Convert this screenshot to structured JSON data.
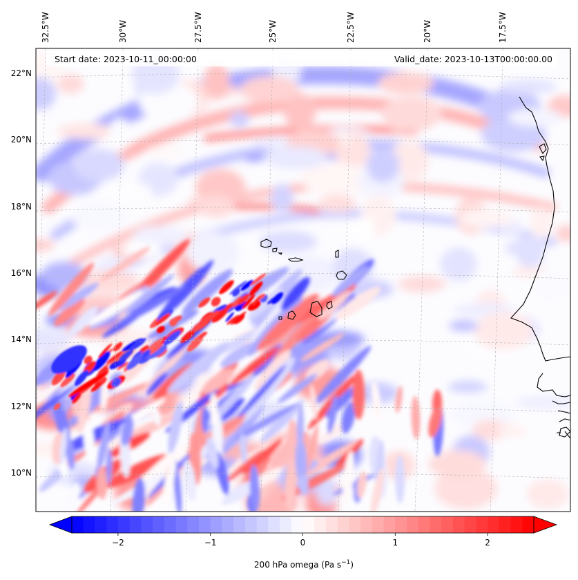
{
  "map": {
    "start_date_text": "Start date: 2023-10-11_00:00:00",
    "valid_date_text": "Valid_date: 2023-10-13T00:00:00.00",
    "lon_ticks": [
      "32.5°W",
      "30°W",
      "27.5°W",
      "25°W",
      "22.5°W",
      "20°W",
      "17.5°W"
    ],
    "lat_ticks": [
      "22°N",
      "20°N",
      "18°N",
      "16°N",
      "14°N",
      "12°N",
      "10°N"
    ],
    "gridline_color": "#b0b0b0"
  },
  "colorbar": {
    "label_main": "200 hPa omega (Pa s",
    "label_sup": "−1",
    "label_end": ")",
    "ticks": [
      "−2",
      "−1",
      "0",
      "1",
      "2"
    ],
    "tick_values": [
      -2,
      -1,
      0,
      1,
      2
    ],
    "range": [
      -2.5,
      2.5
    ],
    "low_color": "#0000ff",
    "mid_color": "#ffffff",
    "high_color": "#ff0000"
  },
  "chart_data": {
    "type": "heatmap",
    "variable": "200 hPa omega",
    "units": "Pa s^-1",
    "vmin": -2.5,
    "vmax": 2.5,
    "colormap": "bwr",
    "lon_range": [
      -32.75,
      -16.25
    ],
    "lat_range": [
      9.0,
      22.8
    ]
  }
}
